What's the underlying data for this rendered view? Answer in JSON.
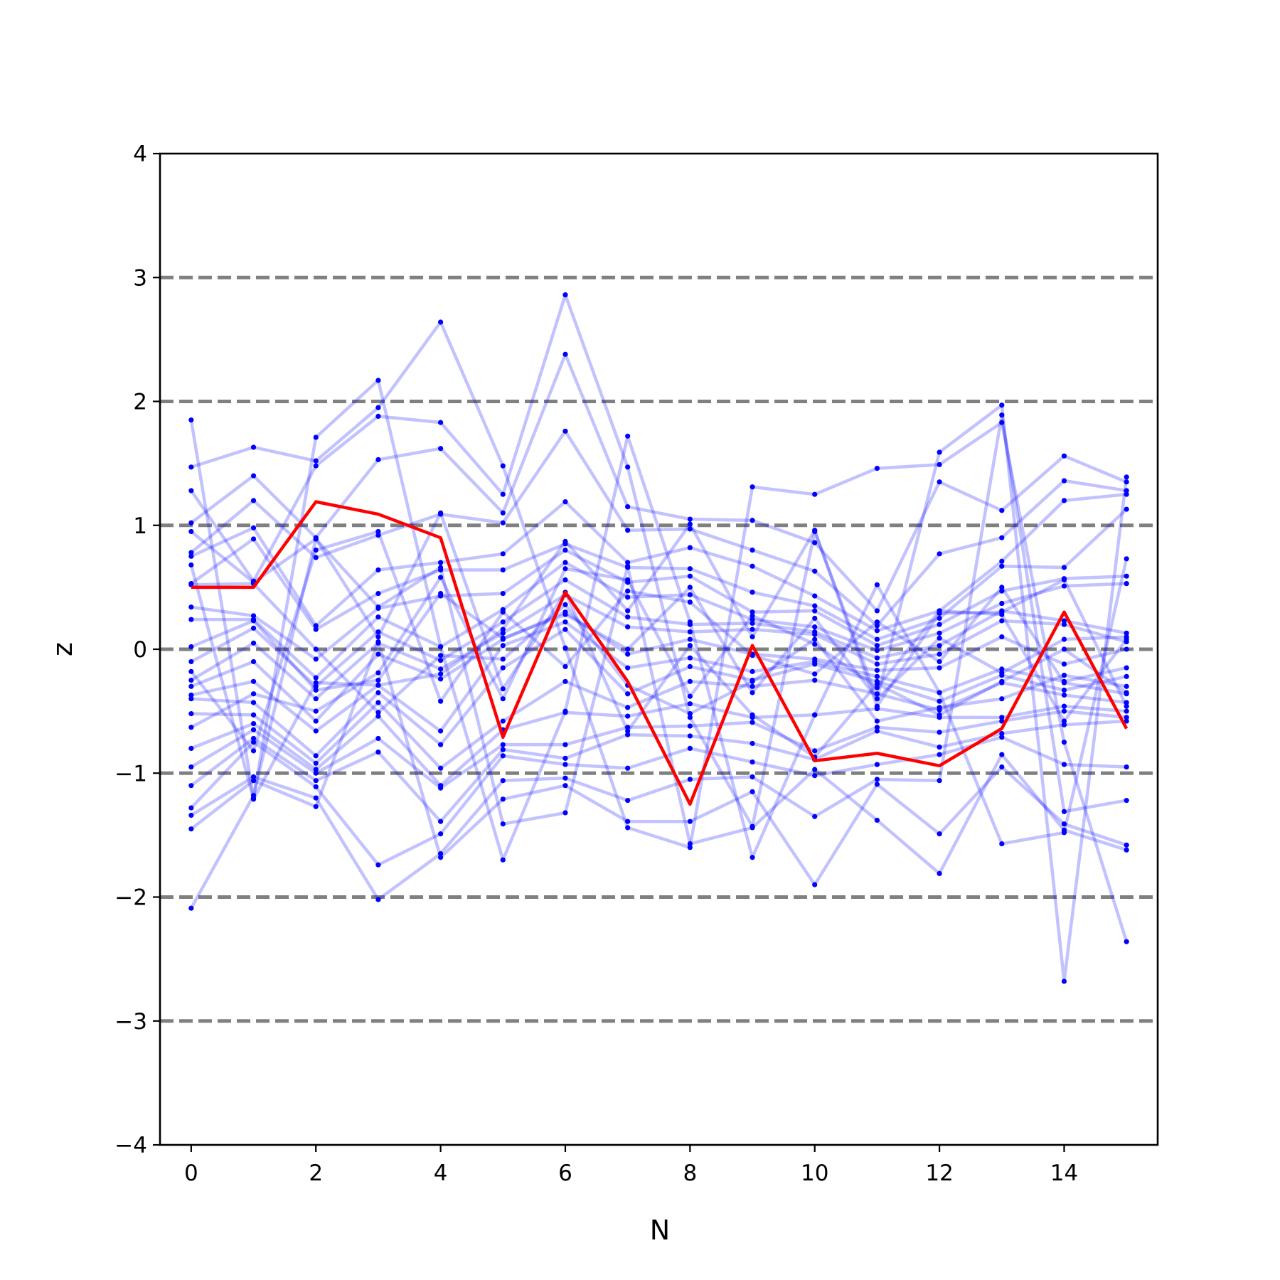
{
  "chart_data": {
    "type": "line",
    "title": "",
    "xlabel": "N",
    "ylabel": "z",
    "xlim": [
      -0.5,
      15.5
    ],
    "ylim": [
      -4,
      4
    ],
    "xticks": [
      0,
      2,
      4,
      6,
      8,
      10,
      12,
      14
    ],
    "xtick_labels": [
      "0",
      "2",
      "4",
      "6",
      "8",
      "10",
      "12",
      "14"
    ],
    "yticks": [
      -4,
      -3,
      -2,
      -1,
      0,
      1,
      2,
      3,
      4
    ],
    "ytick_labels": [
      "−4",
      "−3",
      "−2",
      "−1",
      "0",
      "1",
      "2",
      "3",
      "4"
    ],
    "reference_lines": [
      -3,
      -2,
      -1,
      0,
      1,
      2,
      3
    ],
    "reference_color": "#808080",
    "x": [
      0,
      1,
      2,
      3,
      4,
      5,
      6,
      7,
      8,
      9,
      10,
      11,
      12,
      13,
      14,
      15
    ],
    "highlight_color": "#ff0000",
    "trace_color": "#0000ff",
    "highlight": {
      "values": [
        0.5,
        0.5,
        1.19,
        1.09,
        0.9,
        -0.71,
        0.46,
        -0.26,
        -1.25,
        0.03,
        -0.9,
        -0.84,
        -0.94,
        -0.64,
        0.3,
        -0.64
      ]
    },
    "series": [
      {
        "values": [
          1.85,
          -1.2,
          1.71,
          2.17,
          0.02,
          -1.7,
          -0.5,
          1.72,
          0.22,
          -1.68,
          -0.53,
          0.52,
          -0.35,
          -1.57,
          -1.48,
          0.73
        ]
      },
      {
        "values": [
          1.47,
          1.63,
          1.52,
          1.95,
          2.64,
          1.48,
          0.01,
          -1.44,
          -1.6,
          1.31,
          1.25,
          1.46,
          1.49,
          1.83,
          -0.75,
          -2.36
        ]
      },
      {
        "values": [
          1.28,
          0.55,
          1.48,
          1.88,
          1.83,
          1.25,
          2.86,
          1.47,
          -0.55,
          -1.43,
          0.95,
          -0.4,
          1.59,
          1.97,
          -2.68,
          1.39
        ]
      },
      {
        "values": [
          1.02,
          1.4,
          0.9,
          1.53,
          1.62,
          1.1,
          2.38,
          1.15,
          1.05,
          1.04,
          0.86,
          0.31,
          1.35,
          1.12,
          1.56,
          1.35
        ]
      },
      {
        "values": [
          0.78,
          1.2,
          0.74,
          0.92,
          1.09,
          1.02,
          1.76,
          0.96,
          0.97,
          0.8,
          0.63,
          0.19,
          0.77,
          0.9,
          1.36,
          1.28
        ]
      },
      {
        "values": [
          0.75,
          0.98,
          0.19,
          0.64,
          0.7,
          0.77,
          1.19,
          0.7,
          0.82,
          0.67,
          0.43,
          0.15,
          0.31,
          0.71,
          1.2,
          1.25
        ]
      },
      {
        "values": [
          0.53,
          0.89,
          0.16,
          0.45,
          0.64,
          0.64,
          0.85,
          0.66,
          0.65,
          0.46,
          0.35,
          0.08,
          0.25,
          0.67,
          0.66,
          1.13
        ]
      },
      {
        "values": [
          0.34,
          0.27,
          -0.08,
          0.33,
          0.43,
          0.45,
          0.8,
          0.54,
          0.59,
          0.3,
          0.31,
          0.03,
          0.2,
          0.47,
          0.57,
          0.59
        ]
      },
      {
        "values": [
          0.24,
          0.24,
          -0.23,
          0.26,
          0.02,
          0.32,
          0.7,
          0.42,
          0.44,
          0.24,
          0.18,
          -0.01,
          0.13,
          0.37,
          0.51,
          0.53
        ]
      },
      {
        "values": [
          -0.1,
          0.17,
          -0.3,
          0.14,
          -0.09,
          0.22,
          0.56,
          0.26,
          0.2,
          0.21,
          0.14,
          -0.07,
          0.03,
          0.31,
          0.23,
          0.13
        ]
      },
      {
        "values": [
          -0.25,
          0.05,
          -0.4,
          0.05,
          -0.16,
          0.13,
          0.44,
          0.18,
          0.14,
          0.16,
          0.12,
          -0.12,
          -0.04,
          0.23,
          0.2,
          0.06
        ]
      },
      {
        "values": [
          -0.3,
          -0.1,
          -0.58,
          -0.04,
          -0.24,
          0.08,
          0.3,
          -0.04,
          0.08,
          -0.04,
          -0.08,
          -0.17,
          -0.15,
          0.1,
          -0.12,
          0.0
        ]
      },
      {
        "values": [
          -0.37,
          -0.26,
          -0.66,
          -0.29,
          -0.66,
          0.03,
          0.22,
          -0.15,
          -0.07,
          -0.18,
          -0.1,
          -0.22,
          -0.35,
          -0.16,
          -0.26,
          -0.15
        ]
      },
      {
        "values": [
          -0.4,
          -0.43,
          -0.86,
          -0.35,
          -0.77,
          -0.15,
          0.16,
          -0.36,
          -0.14,
          -0.25,
          -0.12,
          -0.26,
          -0.42,
          -0.21,
          -0.33,
          -0.22
        ]
      },
      {
        "values": [
          -0.52,
          -0.53,
          -0.92,
          -0.43,
          -0.96,
          -0.58,
          -0.26,
          -0.47,
          -0.26,
          -0.3,
          -0.25,
          -0.36,
          -0.49,
          -0.27,
          -0.37,
          -0.43
        ]
      },
      {
        "values": [
          -0.8,
          -0.6,
          -0.97,
          -0.54,
          -1.1,
          -0.65,
          -0.51,
          -0.54,
          -0.44,
          -0.55,
          -0.53,
          -0.48,
          -0.55,
          -0.55,
          -0.46,
          -0.5
        ]
      },
      {
        "values": [
          -0.95,
          -0.65,
          -1.0,
          -0.72,
          -1.12,
          -0.77,
          -0.77,
          -0.63,
          -0.62,
          -0.59,
          -0.82,
          -0.63,
          -0.67,
          -0.58,
          -0.5,
          -0.55
        ]
      },
      {
        "values": [
          -1.1,
          -0.72,
          -1.06,
          -0.83,
          -1.39,
          -0.81,
          -0.88,
          -0.69,
          -0.7,
          -0.76,
          -0.89,
          -0.66,
          -0.79,
          -0.68,
          -0.61,
          -0.58
        ]
      },
      {
        "values": [
          -1.28,
          -0.75,
          -1.11,
          -1.74,
          -1.49,
          -0.86,
          -0.93,
          -0.96,
          -0.8,
          -0.91,
          -1.02,
          -0.93,
          -0.85,
          -0.71,
          -0.93,
          -0.95
        ]
      },
      {
        "values": [
          -1.34,
          -1.03,
          -1.2,
          -2.02,
          -1.65,
          -1.06,
          -1.04,
          -1.22,
          -1.05,
          -1.03,
          -1.35,
          -1.05,
          -1.06,
          1.89,
          -1.31,
          -1.22
        ]
      },
      {
        "values": [
          -1.45,
          -1.06,
          -1.27,
          0.06,
          -1.68,
          -1.21,
          -1.1,
          -1.39,
          -1.39,
          -1.15,
          -1.9,
          -1.09,
          -1.49,
          -0.95,
          -1.41,
          -1.58
        ]
      },
      {
        "values": [
          -2.09,
          -1.18,
          0.89,
          0.34,
          0.66,
          -1.41,
          -1.32,
          0.67,
          -1.57,
          -1.44,
          -0.97,
          -1.38,
          -1.81,
          -0.85,
          -1.46,
          -1.62
        ]
      },
      {
        "values": [
          0.68,
          -1.21,
          -0.27,
          -0.29,
          -0.2,
          0.16,
          0.87,
          0.31,
          1.01,
          0.1,
          0.96,
          -0.46,
          0.29,
          0.3,
          0.56,
          -0.46
        ]
      },
      {
        "values": [
          0.52,
          0.53,
          0.0,
          -0.51,
          -0.05,
          -0.08,
          0.36,
          -0.29,
          -0.52,
          -0.26,
          0.08,
          -0.58,
          -0.47,
          -0.4,
          -0.21,
          -0.3
        ]
      },
      {
        "values": [
          0.02,
          0.23,
          -0.33,
          -0.25,
          0.45,
          0.09,
          0.28,
          0.0,
          0.5,
          -0.35,
          0.25,
          -0.4,
          0.09,
          -0.19,
          0.08,
          0.1
        ]
      },
      {
        "values": [
          -0.63,
          -0.36,
          -0.5,
          -0.19,
          0.58,
          -0.4,
          0.65,
          0.56,
          -0.38,
          0.27,
          0.04,
          -0.31,
          0.31,
          0.28,
          -0.58,
          0.08
        ]
      },
      {
        "values": [
          0.95,
          0.54,
          0.89,
          0.1,
          1.1,
          -0.32,
          0.46,
          -0.66,
          0.03,
          -0.53,
          -0.87,
          -0.28,
          -0.53,
          -0.26,
          0.0,
          -0.35
        ]
      },
      {
        "values": [
          -0.18,
          -0.82,
          0.8,
          0.95,
          -0.42,
          0.3,
          -0.14,
          0.47,
          0.38,
          -0.05,
          -0.2,
          0.22,
          -0.1,
          0.5,
          -0.27,
          -0.36
        ]
      }
    ]
  }
}
